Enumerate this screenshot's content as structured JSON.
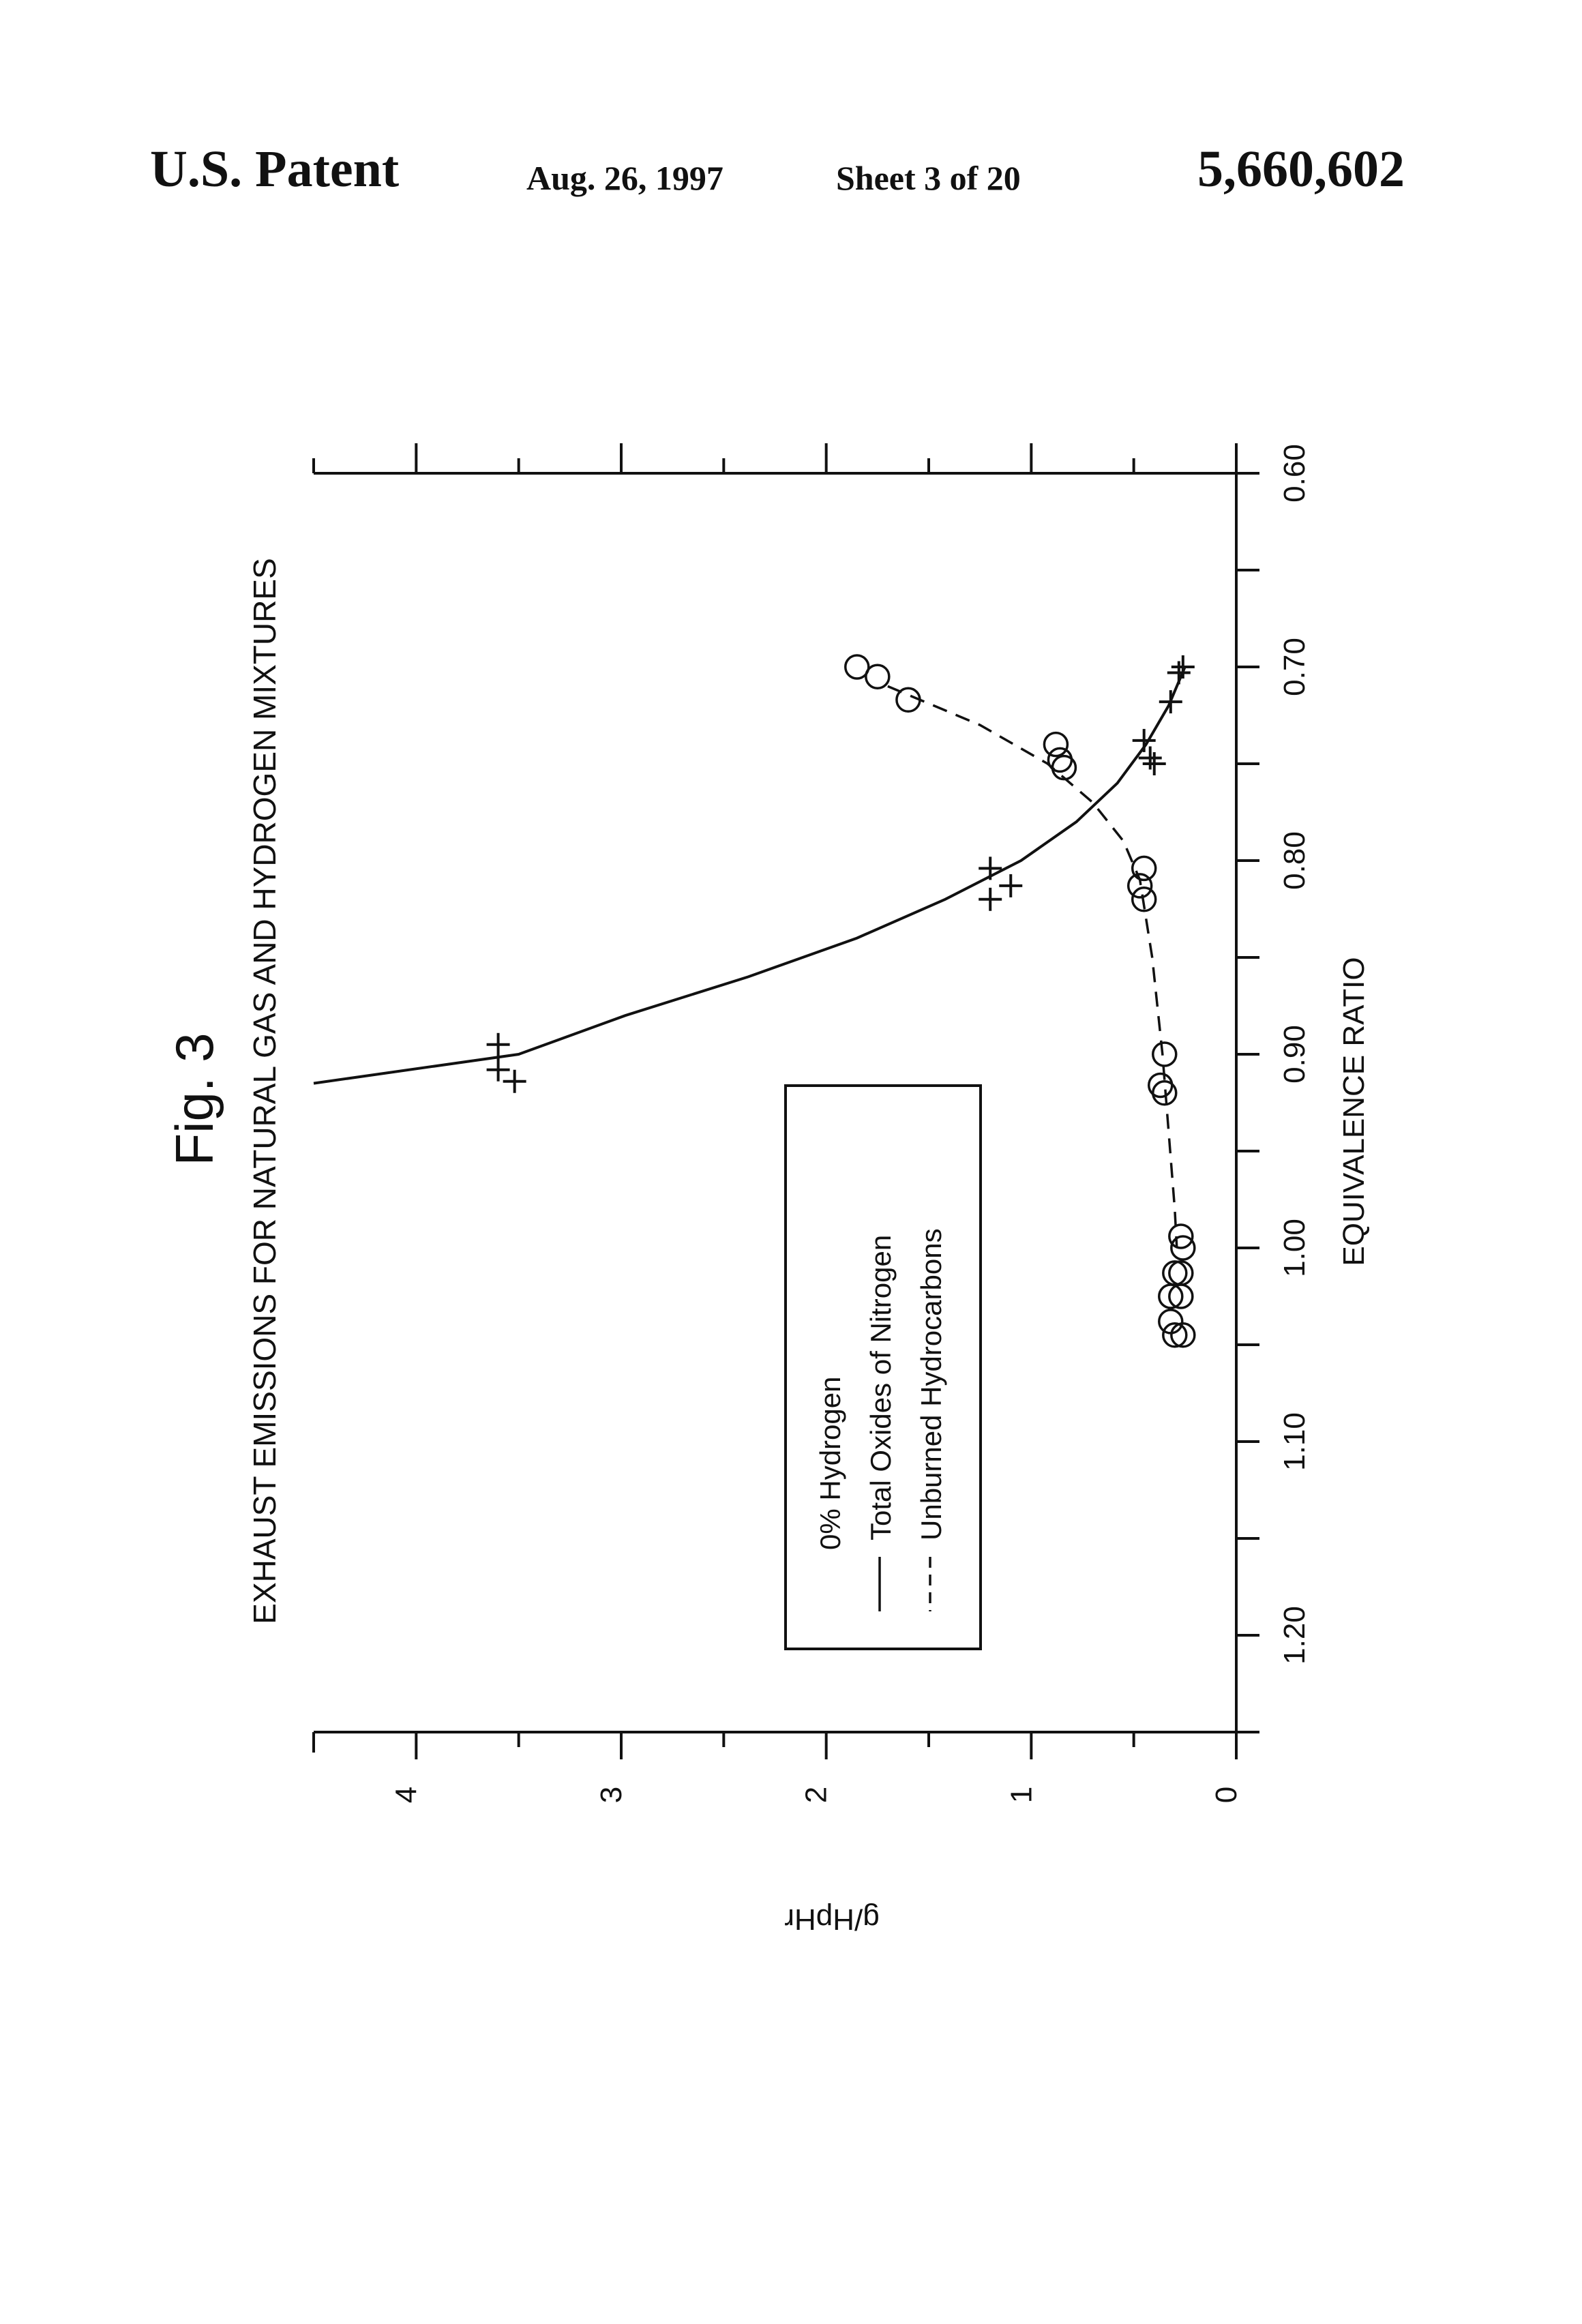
{
  "header": {
    "patent_label": "U.S. Patent",
    "date": "Aug. 26, 1997",
    "sheet": "Sheet 3 of 20",
    "patent_number": "5,660,602"
  },
  "chart_data": {
    "type": "scatter",
    "figure_label": "Fig. 3",
    "title": "EXHAUST EMISSIONS FOR NATURAL GAS AND HYDROGEN MIXTURES",
    "xlabel": "EQUIVALENCE RATIO",
    "ylabel": "g/HpHr",
    "xlim": [
      0.6,
      1.25
    ],
    "ylim": [
      0,
      4.5
    ],
    "x_ticks": [
      0.6,
      0.7,
      0.8,
      0.9,
      1.0,
      1.1,
      1.2
    ],
    "x_tick_labels": [
      "0.60",
      "0.70",
      "0.80",
      "0.90",
      "1.00",
      "1.10",
      "1.20"
    ],
    "y_ticks": [
      0,
      1,
      2,
      3,
      4
    ],
    "y_tick_labels": [
      "0",
      "1",
      "2",
      "3",
      "4"
    ],
    "legend": {
      "placement": "center",
      "title": "0% Hydrogen",
      "entries": [
        {
          "label": "Total Oxides of Nitrogen",
          "style": "solid"
        },
        {
          "label": "Unburned Hydrocarbons",
          "style": "dashed"
        }
      ]
    },
    "series": [
      {
        "name": "Total Oxides of Nitrogen",
        "marker": "plus",
        "points": [
          {
            "x": 0.7,
            "y": 0.26
          },
          {
            "x": 0.703,
            "y": 0.28
          },
          {
            "x": 0.718,
            "y": 0.32
          },
          {
            "x": 0.738,
            "y": 0.45
          },
          {
            "x": 0.747,
            "y": 0.42
          },
          {
            "x": 0.75,
            "y": 0.4
          },
          {
            "x": 0.804,
            "y": 1.2
          },
          {
            "x": 0.813,
            "y": 1.1
          },
          {
            "x": 0.82,
            "y": 1.2
          },
          {
            "x": 0.895,
            "y": 3.6
          },
          {
            "x": 0.908,
            "y": 3.6
          },
          {
            "x": 0.914,
            "y": 3.52
          }
        ],
        "curve": [
          {
            "x": 0.7,
            "y": 0.25
          },
          {
            "x": 0.72,
            "y": 0.33
          },
          {
            "x": 0.74,
            "y": 0.44
          },
          {
            "x": 0.76,
            "y": 0.58
          },
          {
            "x": 0.78,
            "y": 0.78
          },
          {
            "x": 0.8,
            "y": 1.05
          },
          {
            "x": 0.82,
            "y": 1.42
          },
          {
            "x": 0.84,
            "y": 1.85
          },
          {
            "x": 0.86,
            "y": 2.38
          },
          {
            "x": 0.88,
            "y": 2.98
          },
          {
            "x": 0.9,
            "y": 3.5
          },
          {
            "x": 0.915,
            "y": 4.5
          }
        ]
      },
      {
        "name": "Unburned Hydrocarbons",
        "marker": "circle",
        "points": [
          {
            "x": 0.7,
            "y": 1.85
          },
          {
            "x": 0.705,
            "y": 1.75
          },
          {
            "x": 0.717,
            "y": 1.6
          },
          {
            "x": 0.74,
            "y": 0.88
          },
          {
            "x": 0.748,
            "y": 0.86
          },
          {
            "x": 0.752,
            "y": 0.84
          },
          {
            "x": 0.804,
            "y": 0.45
          },
          {
            "x": 0.813,
            "y": 0.47
          },
          {
            "x": 0.82,
            "y": 0.45
          },
          {
            "x": 0.9,
            "y": 0.35
          },
          {
            "x": 0.916,
            "y": 0.37
          },
          {
            "x": 0.92,
            "y": 0.35
          },
          {
            "x": 0.994,
            "y": 0.27
          },
          {
            "x": 1.0,
            "y": 0.26
          },
          {
            "x": 1.013,
            "y": 0.3
          },
          {
            "x": 1.013,
            "y": 0.27
          },
          {
            "x": 1.025,
            "y": 0.32
          },
          {
            "x": 1.025,
            "y": 0.27
          },
          {
            "x": 1.038,
            "y": 0.32
          },
          {
            "x": 1.045,
            "y": 0.3
          },
          {
            "x": 1.045,
            "y": 0.26
          }
        ],
        "curve": [
          {
            "x": 0.71,
            "y": 1.7
          },
          {
            "x": 0.73,
            "y": 1.25
          },
          {
            "x": 0.75,
            "y": 0.92
          },
          {
            "x": 0.77,
            "y": 0.7
          },
          {
            "x": 0.79,
            "y": 0.55
          },
          {
            "x": 0.81,
            "y": 0.47
          },
          {
            "x": 0.85,
            "y": 0.41
          },
          {
            "x": 0.9,
            "y": 0.36
          },
          {
            "x": 0.94,
            "y": 0.33
          },
          {
            "x": 0.98,
            "y": 0.3
          },
          {
            "x": 1.0,
            "y": 0.29
          }
        ]
      }
    ]
  }
}
